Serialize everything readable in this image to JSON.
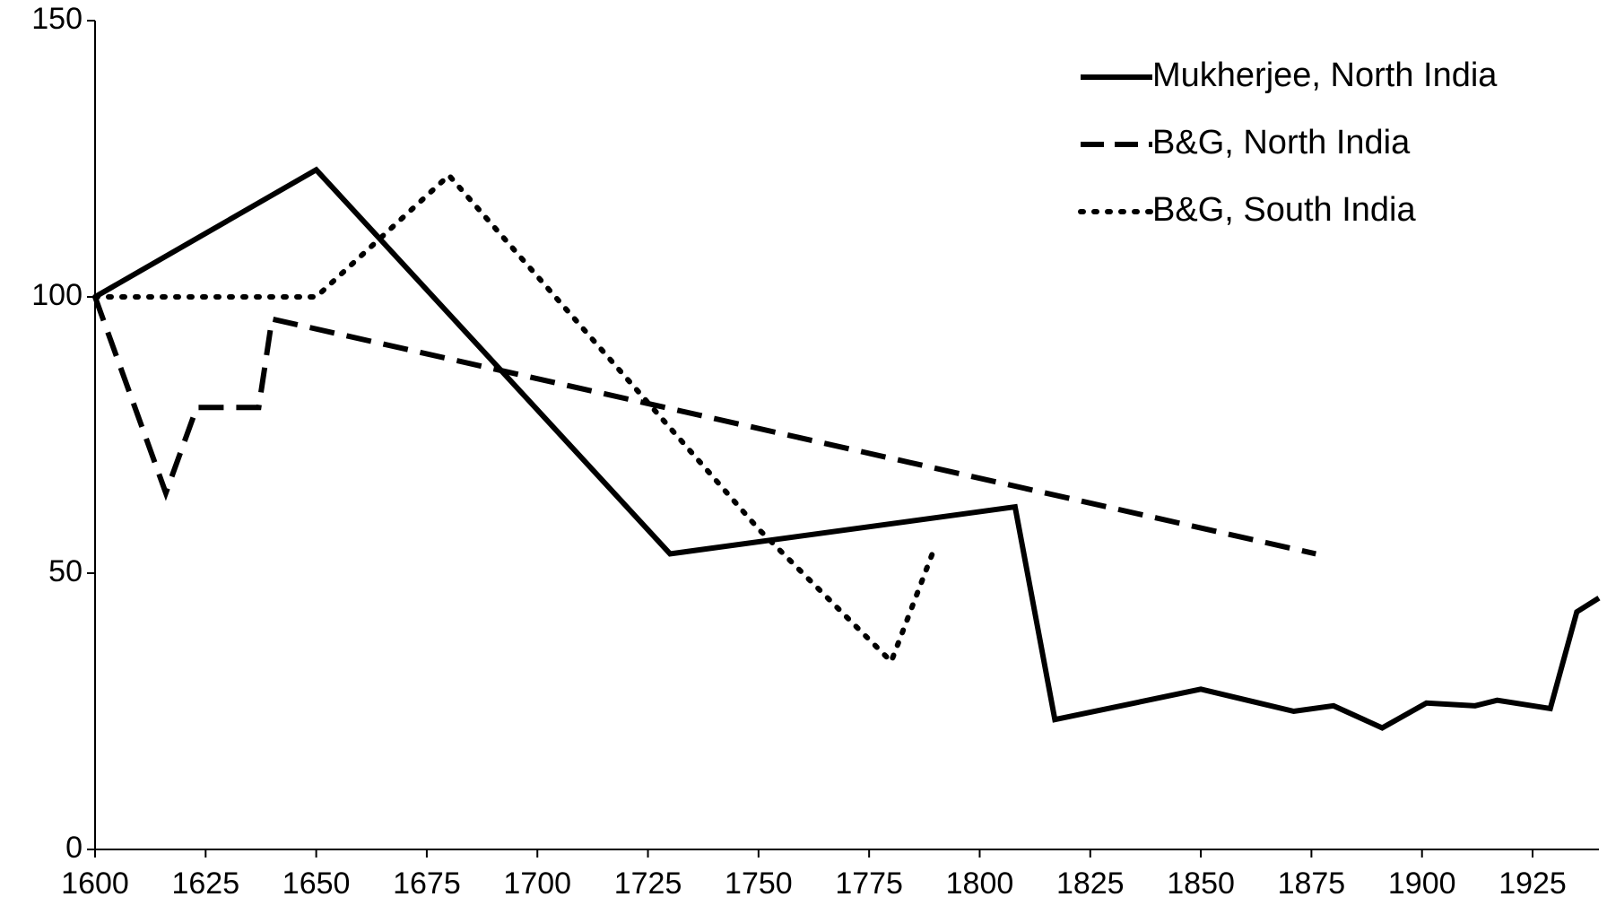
{
  "chart_data": {
    "type": "line",
    "xlim": [
      1600,
      1940
    ],
    "xticks": [
      1600,
      1625,
      1650,
      1675,
      1700,
      1725,
      1750,
      1775,
      1800,
      1825,
      1850,
      1875,
      1900,
      1925
    ],
    "ylim": [
      0,
      150
    ],
    "yticks": [
      0,
      50,
      100,
      150
    ],
    "grid": false,
    "legend": "upper right",
    "series": [
      {
        "name": "Mukherjee, North India",
        "color": "#000000",
        "style": "solid",
        "x": [
          1600,
          1650,
          1730,
          1808,
          1817,
          1850,
          1871,
          1880,
          1891,
          1901,
          1912,
          1917,
          1929,
          1935,
          1940
        ],
        "values": [
          100,
          123,
          53.5,
          62,
          23.5,
          29,
          25,
          26,
          22,
          26.5,
          26,
          27,
          25.5,
          43,
          45.5
        ]
      },
      {
        "name": "B&G, North India",
        "color": "#000000",
        "style": "dashed",
        "x": [
          1600,
          1616,
          1623,
          1637,
          1640,
          1876
        ],
        "values": [
          100,
          64.5,
          80,
          80,
          96,
          53.5
        ]
      },
      {
        "name": "B&G, South India",
        "color": "#000000",
        "style": "dotted",
        "x": [
          1600,
          1650,
          1680,
          1750,
          1780,
          1790
        ],
        "values": [
          100,
          100,
          122,
          58,
          34,
          55
        ]
      }
    ]
  }
}
